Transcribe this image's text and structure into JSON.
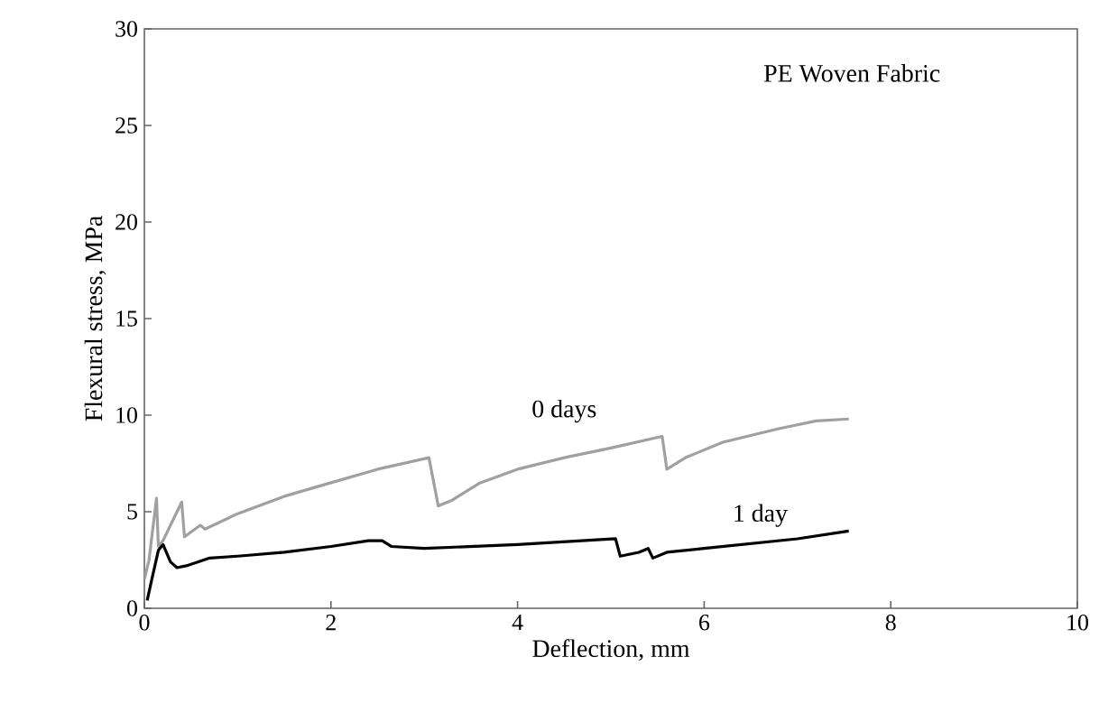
{
  "chart_data": {
    "type": "line",
    "xlabel": "Deflection, mm",
    "ylabel": "Flexural stress, MPa",
    "annotations": [
      "PE Woven Fabric"
    ],
    "xlim": [
      0,
      10
    ],
    "xticks": [
      0,
      2,
      4,
      6,
      8,
      10
    ],
    "ylim": [
      0,
      30
    ],
    "yticks": [
      0,
      5,
      10,
      15,
      20,
      25,
      30
    ],
    "series": [
      {
        "name": "0 days",
        "color": "#a0a0a0",
        "x": [
          0.0,
          0.05,
          0.13,
          0.15,
          0.2,
          0.4,
          0.43,
          0.6,
          0.65,
          1,
          1.5,
          2,
          2.5,
          3.05,
          3.15,
          3.3,
          3.6,
          4,
          4.5,
          5,
          5.55,
          5.6,
          5.8,
          6.2,
          6.8,
          7.2,
          7.55
        ],
        "values": [
          1.5,
          2.5,
          5.7,
          3.2,
          3.5,
          5.5,
          3.7,
          4.3,
          4.1,
          4.9,
          5.8,
          6.5,
          7.2,
          7.8,
          5.3,
          5.6,
          6.5,
          7.2,
          7.8,
          8.3,
          8.9,
          7.2,
          7.8,
          8.6,
          9.3,
          9.7,
          9.8
        ]
      },
      {
        "name": "1 day",
        "color": "#000000",
        "x": [
          0.03,
          0.08,
          0.15,
          0.2,
          0.28,
          0.35,
          0.45,
          0.7,
          1,
          1.5,
          2,
          2.4,
          2.55,
          2.65,
          3,
          4,
          5.05,
          5.1,
          5.3,
          5.4,
          5.45,
          5.6,
          6,
          7,
          7.55
        ],
        "values": [
          0.4,
          1.5,
          3.0,
          3.3,
          2.4,
          2.1,
          2.2,
          2.6,
          2.7,
          2.9,
          3.2,
          3.5,
          3.5,
          3.2,
          3.1,
          3.3,
          3.6,
          2.7,
          2.9,
          3.1,
          2.6,
          2.9,
          3.1,
          3.6,
          4.0
        ]
      }
    ]
  }
}
